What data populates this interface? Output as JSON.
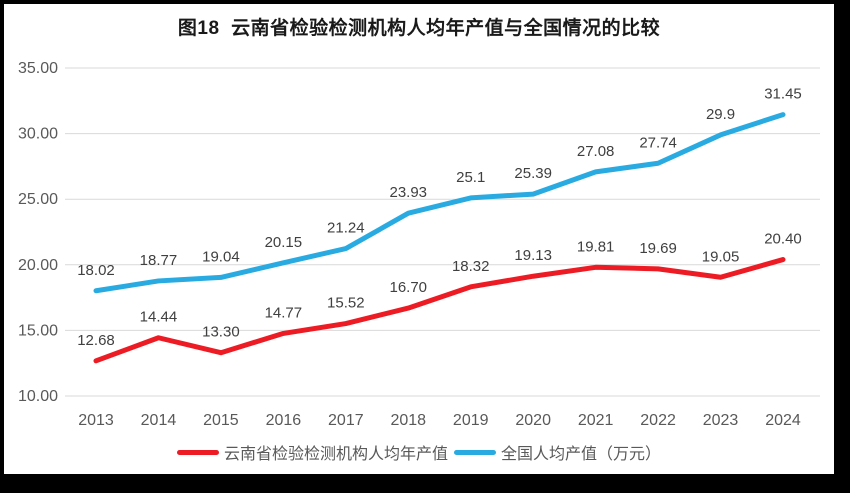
{
  "chart_data": {
    "type": "line",
    "title": "图18  云南省检验检测机构人均年产值与全国情况的比较",
    "categories": [
      "2013",
      "2014",
      "2015",
      "2016",
      "2017",
      "2018",
      "2019",
      "2020",
      "2021",
      "2022",
      "2023",
      "2024"
    ],
    "series": [
      {
        "name": "云南省检验检测机构人均年产值",
        "color": "#ed1c24",
        "values": [
          12.68,
          14.44,
          13.3,
          14.77,
          15.52,
          16.7,
          18.32,
          19.13,
          19.81,
          19.69,
          19.05,
          20.4
        ],
        "labels": [
          "12.68",
          "14.44",
          "13.30",
          "14.77",
          "15.52",
          "16.70",
          "18.32",
          "19.13",
          "19.81",
          "19.69",
          "19.05",
          "20.40"
        ]
      },
      {
        "name": "全国人均产值（万元）",
        "color": "#29abe2",
        "values": [
          18.02,
          18.77,
          19.04,
          20.15,
          21.24,
          23.93,
          25.1,
          25.39,
          27.08,
          27.74,
          29.9,
          31.45
        ],
        "labels": [
          "18.02",
          "18.77",
          "19.04",
          "20.15",
          "21.24",
          "23.93",
          "25.1",
          "25.39",
          "27.08",
          "27.74",
          "29.9",
          "31.45"
        ]
      }
    ],
    "y_axis": {
      "min": 10,
      "max": 35,
      "ticks": [
        "10.00",
        "15.00",
        "20.00",
        "25.00",
        "30.00",
        "35.00"
      ]
    },
    "grid": true,
    "legend_position": "bottom",
    "colors": {
      "grid": "#d9d9d9",
      "axis_text": "#595959",
      "label_text": "#404040",
      "title_text": "#1a1a1a",
      "panel_bg": "#ffffff",
      "frame_bg": "#000000"
    }
  }
}
